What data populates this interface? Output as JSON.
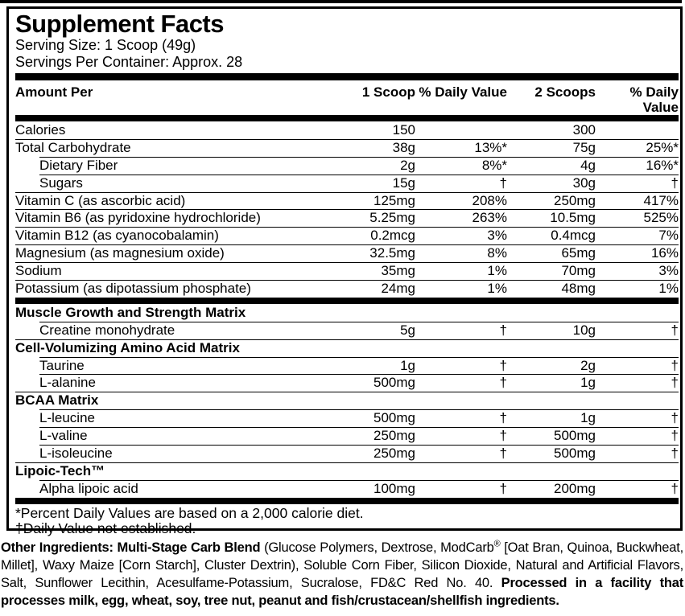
{
  "colors": {
    "ink": "#000000",
    "paper": "#ffffff"
  },
  "label": {
    "title": "Supplement Facts",
    "serving_size": "Serving Size: 1 Scoop (49g)",
    "servings_per_container": "Servings Per Container: Approx. 28",
    "header": {
      "amount_per": "Amount Per",
      "scoop1": "1 Scoop",
      "dv1": "% Daily Value",
      "scoop2": "2 Scoops",
      "dv2": "% Daily Value"
    },
    "rows": [
      {
        "name": "Calories",
        "indent": false,
        "bold": false,
        "line": "none",
        "c1": "150",
        "c2": "",
        "c3": "300",
        "c4": ""
      },
      {
        "name": "Total Carbohydrate",
        "indent": false,
        "bold": false,
        "line": "full",
        "c1": "38g",
        "c2": "13%*",
        "c3": "75g",
        "c4": "25%*"
      },
      {
        "name": "Dietary Fiber",
        "indent": true,
        "bold": false,
        "line": "indent",
        "c1": "2g",
        "c2": "8%*",
        "c3": "4g",
        "c4": "16%*"
      },
      {
        "name": "Sugars",
        "indent": true,
        "bold": false,
        "line": "indent",
        "c1": "15g",
        "c2": "†",
        "c3": "30g",
        "c4": "†"
      },
      {
        "name": "Vitamin C (as ascorbic acid)",
        "indent": false,
        "bold": false,
        "line": "full",
        "c1": "125mg",
        "c2": "208%",
        "c3": "250mg",
        "c4": "417%"
      },
      {
        "name": "Vitamin B6 (as pyridoxine hydrochloride)",
        "indent": false,
        "bold": false,
        "line": "full",
        "c1": "5.25mg",
        "c2": "263%",
        "c3": "10.5mg",
        "c4": "525%"
      },
      {
        "name": "Vitamin B12 (as cyanocobalamin)",
        "indent": false,
        "bold": false,
        "line": "full",
        "c1": "0.2mcg",
        "c2": "3%",
        "c3": "0.4mcg",
        "c4": "7%"
      },
      {
        "name": "Magnesium (as magnesium oxide)",
        "indent": false,
        "bold": false,
        "line": "full",
        "c1": "32.5mg",
        "c2": "8%",
        "c3": "65mg",
        "c4": "16%"
      },
      {
        "name": "Sodium",
        "indent": false,
        "bold": false,
        "line": "full",
        "c1": "35mg",
        "c2": "1%",
        "c3": "70mg",
        "c4": "3%"
      },
      {
        "name": "Potassium (as dipotassium phosphate)",
        "indent": false,
        "bold": false,
        "line": "full",
        "c1": "24mg",
        "c2": "1%",
        "c3": "48mg",
        "c4": "1%"
      },
      {
        "type": "bar"
      },
      {
        "name": "Muscle Growth and Strength Matrix",
        "indent": false,
        "bold": true,
        "line": "none",
        "c1": "",
        "c2": "",
        "c3": "",
        "c4": ""
      },
      {
        "name": "Creatine monohydrate",
        "indent": true,
        "bold": false,
        "line": "indent",
        "c1": "5g",
        "c2": "†",
        "c3": "10g",
        "c4": "†"
      },
      {
        "name": "Cell-Volumizing Amino Acid Matrix",
        "indent": false,
        "bold": true,
        "line": "full",
        "c1": "",
        "c2": "",
        "c3": "",
        "c4": ""
      },
      {
        "name": "Taurine",
        "indent": true,
        "bold": false,
        "line": "indent",
        "c1": "1g",
        "c2": "†",
        "c3": "2g",
        "c4": "†"
      },
      {
        "name": "L-alanine",
        "indent": true,
        "bold": false,
        "line": "indent",
        "c1": "500mg",
        "c2": "†",
        "c3": "1g",
        "c4": "†"
      },
      {
        "name": "BCAA Matrix",
        "indent": false,
        "bold": true,
        "line": "full",
        "c1": "",
        "c2": "",
        "c3": "",
        "c4": ""
      },
      {
        "name": "L-leucine",
        "indent": true,
        "bold": false,
        "line": "indent",
        "c1": "500mg",
        "c2": "†",
        "c3": "1g",
        "c4": "†"
      },
      {
        "name": "L-valine",
        "indent": true,
        "bold": false,
        "line": "indent",
        "c1": "250mg",
        "c2": "†",
        "c3": "500mg",
        "c4": "†"
      },
      {
        "name": "L-isoleucine",
        "indent": true,
        "bold": false,
        "line": "indent",
        "c1": "250mg",
        "c2": "†",
        "c3": "500mg",
        "c4": "†"
      },
      {
        "name": "Lipoic-Tech™",
        "indent": false,
        "bold": true,
        "line": "full",
        "c1": "",
        "c2": "",
        "c3": "",
        "c4": ""
      },
      {
        "name": "Alpha lipoic acid",
        "indent": true,
        "bold": false,
        "line": "indent",
        "c1": "100mg",
        "c2": "†",
        "c3": "200mg",
        "c4": "†"
      }
    ],
    "footnotes": [
      "*Percent Daily Values are based on a 2,000 calorie diet.",
      "†Daily Value not established."
    ]
  },
  "other_ingredients": {
    "segments": [
      {
        "text": "Other Ingredients: Multi-Stage Carb Blend ",
        "bold": true,
        "sup": false
      },
      {
        "text": "(Glucose Polymers, Dextrose, ModCarb",
        "bold": false,
        "sup": false
      },
      {
        "text": "®",
        "bold": false,
        "sup": true
      },
      {
        "text": " [Oat Bran, Quinoa, Buckwheat, Millet], Waxy Maize [Corn Starch], Cluster Dextrin), Soluble Corn Fiber, Silicon Dioxide, Natural and Artificial Flavors, Salt, Sunflower Lecithin, Acesulfame-Potassium, Sucralose, FD&C Red No. 40. ",
        "bold": false,
        "sup": false
      },
      {
        "text": "Processed in a facility that processes milk, egg, wheat, soy, tree nut, peanut and fish/crustacean/shellfish ingredients.",
        "bold": true,
        "sup": false
      }
    ]
  }
}
